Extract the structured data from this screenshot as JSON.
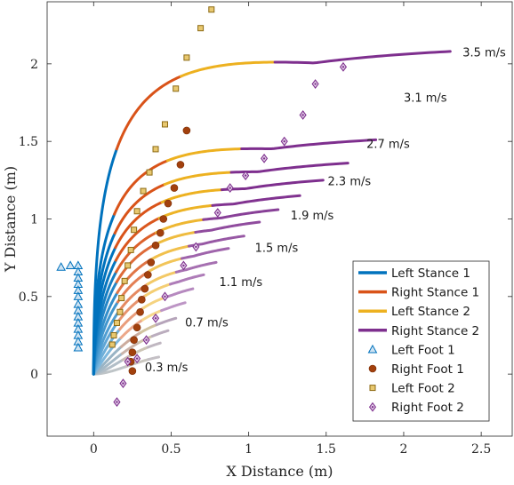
{
  "chart_data": {
    "type": "line",
    "xlabel": "X Distance (m)",
    "ylabel": "Y Distance (m)",
    "xlim": [
      -0.3,
      2.7
    ],
    "ylim": [
      -0.4,
      2.4
    ],
    "xticks": [
      0,
      0.5,
      1,
      1.5,
      2,
      2.5
    ],
    "yticks": [
      0,
      0.5,
      1,
      1.5,
      2
    ],
    "xtick_labels": [
      "0",
      "0.5",
      "1",
      "1.5",
      "2",
      "2.5"
    ],
    "ytick_labels": [
      "0",
      "0.5",
      "1",
      "1.5",
      "2"
    ],
    "legend_position": "bottom-right",
    "legend": [
      {
        "label": "Left Stance 1",
        "kind": "line",
        "color": "#0072BD"
      },
      {
        "label": "Right Stance 1",
        "kind": "line",
        "color": "#D95319"
      },
      {
        "label": "Left Stance 2",
        "kind": "line",
        "color": "#EDB120"
      },
      {
        "label": "Right Stance 2",
        "kind": "line",
        "color": "#7E2F8E"
      },
      {
        "label": "Left Foot 1",
        "kind": "triangle",
        "color": "#0072BD"
      },
      {
        "label": "Right Foot 1",
        "kind": "circle",
        "color": "#A2400D"
      },
      {
        "label": "Left Foot 2",
        "kind": "square",
        "color": "#C8961E"
      },
      {
        "label": "Right Foot 2",
        "kind": "diamond",
        "color": "#7E2F8E"
      }
    ],
    "speed_labels": [
      {
        "text": "0.3 m/s",
        "x": 0.33,
        "y": 0.04
      },
      {
        "text": "0.7 m/s",
        "x": 0.59,
        "y": 0.33
      },
      {
        "text": "1.1 m/s",
        "x": 0.81,
        "y": 0.59
      },
      {
        "text": "1.5 m/s",
        "x": 1.04,
        "y": 0.81
      },
      {
        "text": "1.9 m/s",
        "x": 1.27,
        "y": 1.02
      },
      {
        "text": "2.3 m/s",
        "x": 1.51,
        "y": 1.24
      },
      {
        "text": "2.7 m/s",
        "x": 1.76,
        "y": 1.48
      },
      {
        "text": "3.1 m/s",
        "x": 2.0,
        "y": 1.78
      },
      {
        "text": "3.5 m/s",
        "x": 2.38,
        "y": 2.07
      }
    ],
    "trajectories": {
      "count": 17,
      "speeds": [
        0.3,
        0.35,
        0.5,
        0.7,
        0.9,
        1.1,
        1.3,
        1.5,
        1.7,
        1.9,
        2.1,
        2.3,
        2.5,
        2.7,
        2.9,
        3.1,
        3.5
      ],
      "end_x": [
        0.42,
        0.43,
        0.48,
        0.53,
        0.59,
        0.64,
        0.71,
        0.79,
        0.87,
        0.97,
        1.07,
        1.19,
        1.33,
        1.48,
        1.64,
        1.82,
        2.3
      ],
      "end_y": [
        0.11,
        0.2,
        0.28,
        0.36,
        0.46,
        0.55,
        0.64,
        0.72,
        0.81,
        0.89,
        0.98,
        1.06,
        1.15,
        1.25,
        1.36,
        1.51,
        2.08
      ],
      "stance_fractions": [
        0.28,
        0.52,
        0.73,
        1.0
      ]
    },
    "left_foot_1": [
      [
        -0.21,
        0.69
      ],
      [
        -0.15,
        0.7
      ],
      [
        -0.1,
        0.7
      ],
      [
        -0.1,
        0.66
      ],
      [
        -0.1,
        0.62
      ],
      [
        -0.1,
        0.58
      ],
      [
        -0.1,
        0.54
      ],
      [
        -0.1,
        0.5
      ],
      [
        -0.1,
        0.45
      ],
      [
        -0.1,
        0.41
      ],
      [
        -0.1,
        0.37
      ],
      [
        -0.1,
        0.33
      ],
      [
        -0.1,
        0.29
      ],
      [
        -0.1,
        0.25
      ],
      [
        -0.1,
        0.21
      ],
      [
        -0.1,
        0.17
      ]
    ],
    "right_foot_1": [
      [
        0.25,
        0.02
      ],
      [
        0.24,
        0.08
      ],
      [
        0.25,
        0.14
      ],
      [
        0.26,
        0.22
      ],
      [
        0.28,
        0.3
      ],
      [
        0.3,
        0.4
      ],
      [
        0.31,
        0.48
      ],
      [
        0.33,
        0.55
      ],
      [
        0.35,
        0.64
      ],
      [
        0.37,
        0.72
      ],
      [
        0.4,
        0.83
      ],
      [
        0.43,
        0.91
      ],
      [
        0.45,
        1.0
      ],
      [
        0.48,
        1.1
      ],
      [
        0.52,
        1.2
      ],
      [
        0.56,
        1.35
      ],
      [
        0.6,
        1.57
      ]
    ],
    "left_foot_2": [
      [
        0.12,
        0.19
      ],
      [
        0.13,
        0.25
      ],
      [
        0.15,
        0.33
      ],
      [
        0.17,
        0.4
      ],
      [
        0.18,
        0.49
      ],
      [
        0.2,
        0.6
      ],
      [
        0.22,
        0.7
      ],
      [
        0.24,
        0.8
      ],
      [
        0.26,
        0.93
      ],
      [
        0.28,
        1.05
      ],
      [
        0.32,
        1.18
      ],
      [
        0.36,
        1.3
      ],
      [
        0.4,
        1.45
      ],
      [
        0.46,
        1.61
      ],
      [
        0.53,
        1.84
      ],
      [
        0.6,
        2.04
      ],
      [
        0.69,
        2.23
      ],
      [
        0.76,
        2.35
      ]
    ],
    "right_foot_2": [
      [
        0.15,
        -0.18
      ],
      [
        0.19,
        -0.06
      ],
      [
        0.22,
        0.08
      ],
      [
        0.28,
        0.1
      ],
      [
        0.34,
        0.22
      ],
      [
        0.4,
        0.36
      ],
      [
        0.46,
        0.5
      ],
      [
        0.58,
        0.7
      ],
      [
        0.66,
        0.82
      ],
      [
        0.8,
        1.04
      ],
      [
        0.88,
        1.2
      ],
      [
        0.98,
        1.28
      ],
      [
        1.1,
        1.39
      ],
      [
        1.23,
        1.5
      ],
      [
        1.35,
        1.67
      ],
      [
        1.43,
        1.87
      ],
      [
        1.61,
        1.98
      ]
    ]
  }
}
